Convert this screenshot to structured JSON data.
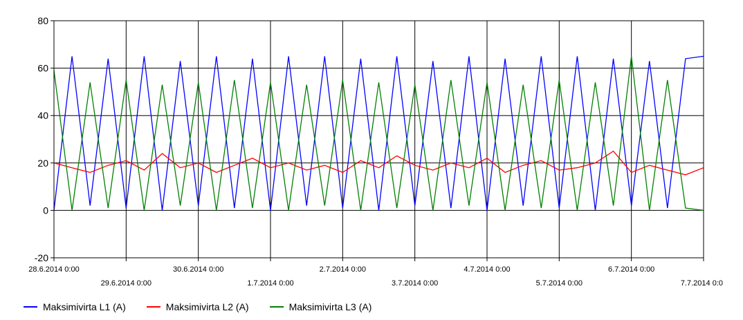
{
  "chart_data": {
    "type": "line",
    "title": "",
    "xlabel": "",
    "ylabel": "",
    "ylim": [
      -20,
      80
    ],
    "yticks": [
      -20,
      0,
      20,
      40,
      60,
      80
    ],
    "xlim": [
      "2014-06-28T00:00",
      "2014-07-07T00:00"
    ],
    "xticks_upper": [
      "28.6.2014 0:00",
      "30.6.2014 0:00",
      "2.7.2014 0:00",
      "4.7.2014 0:00",
      "6.7.2014 0:00"
    ],
    "xticks_lower": [
      "29.6.2014 0:00",
      "1.7.2014 0:00",
      "3.7.2014 0:00",
      "5.7.2014 0:00",
      "7.7.2014 0:0"
    ],
    "grid": true,
    "legend_position": "bottom-left",
    "series": [
      {
        "name": "Maksimivirta L1 (A)",
        "color": "#0000ff",
        "summary": "rapid switching between about 0 and 65",
        "x": [
          "2014-06-28T00:00",
          "2014-06-28T06:00",
          "2014-06-28T12:00",
          "2014-06-28T18:00",
          "2014-06-29T00:00",
          "2014-06-29T06:00",
          "2014-06-29T12:00",
          "2014-06-29T18:00",
          "2014-06-30T00:00",
          "2014-06-30T06:00",
          "2014-06-30T12:00",
          "2014-06-30T18:00",
          "2014-07-01T00:00",
          "2014-07-01T06:00",
          "2014-07-01T12:00",
          "2014-07-01T18:00",
          "2014-07-02T00:00",
          "2014-07-02T06:00",
          "2014-07-02T12:00",
          "2014-07-02T18:00",
          "2014-07-03T00:00",
          "2014-07-03T06:00",
          "2014-07-03T12:00",
          "2014-07-03T18:00",
          "2014-07-04T00:00",
          "2014-07-04T06:00",
          "2014-07-04T12:00",
          "2014-07-04T18:00",
          "2014-07-05T00:00",
          "2014-07-05T06:00",
          "2014-07-05T12:00",
          "2014-07-05T18:00",
          "2014-07-06T00:00",
          "2014-07-06T06:00",
          "2014-07-06T12:00",
          "2014-07-06T18:00",
          "2014-07-07T00:00"
        ],
        "values": [
          0,
          65,
          2,
          64,
          1,
          65,
          0,
          63,
          2,
          65,
          1,
          64,
          0,
          65,
          2,
          65,
          1,
          64,
          0,
          65,
          2,
          63,
          1,
          65,
          0,
          64,
          2,
          65,
          1,
          65,
          0,
          64,
          2,
          63,
          1,
          64,
          65
        ]
      },
      {
        "name": "Maksimivirta L2 (A)",
        "color": "#ff0000",
        "summary": "fluctuates between about 15 and 26",
        "x": [
          "2014-06-28T00:00",
          "2014-06-28T06:00",
          "2014-06-28T12:00",
          "2014-06-28T18:00",
          "2014-06-29T00:00",
          "2014-06-29T06:00",
          "2014-06-29T12:00",
          "2014-06-29T18:00",
          "2014-06-30T00:00",
          "2014-06-30T06:00",
          "2014-06-30T12:00",
          "2014-06-30T18:00",
          "2014-07-01T00:00",
          "2014-07-01T06:00",
          "2014-07-01T12:00",
          "2014-07-01T18:00",
          "2014-07-02T00:00",
          "2014-07-02T06:00",
          "2014-07-02T12:00",
          "2014-07-02T18:00",
          "2014-07-03T00:00",
          "2014-07-03T06:00",
          "2014-07-03T12:00",
          "2014-07-03T18:00",
          "2014-07-04T00:00",
          "2014-07-04T06:00",
          "2014-07-04T12:00",
          "2014-07-04T18:00",
          "2014-07-05T00:00",
          "2014-07-05T06:00",
          "2014-07-05T12:00",
          "2014-07-05T18:00",
          "2014-07-06T00:00",
          "2014-07-06T06:00",
          "2014-07-06T12:00",
          "2014-07-06T18:00",
          "2014-07-07T00:00"
        ],
        "values": [
          20,
          18,
          16,
          19,
          21,
          17,
          24,
          18,
          20,
          16,
          19,
          22,
          18,
          20,
          17,
          19,
          16,
          21,
          18,
          23,
          19,
          17,
          20,
          18,
          22,
          16,
          19,
          21,
          17,
          18,
          20,
          25,
          16,
          19,
          17,
          15,
          18
        ]
      },
      {
        "name": "Maksimivirta L3 (A)",
        "color": "#008000",
        "summary": "rapid switching between about 0 and 55, peaks near 60",
        "x": [
          "2014-06-28T00:00",
          "2014-06-28T06:00",
          "2014-06-28T12:00",
          "2014-06-28T18:00",
          "2014-06-29T00:00",
          "2014-06-29T06:00",
          "2014-06-29T12:00",
          "2014-06-29T18:00",
          "2014-06-30T00:00",
          "2014-06-30T06:00",
          "2014-06-30T12:00",
          "2014-06-30T18:00",
          "2014-07-01T00:00",
          "2014-07-01T06:00",
          "2014-07-01T12:00",
          "2014-07-01T18:00",
          "2014-07-02T00:00",
          "2014-07-02T06:00",
          "2014-07-02T12:00",
          "2014-07-02T18:00",
          "2014-07-03T00:00",
          "2014-07-03T06:00",
          "2014-07-03T12:00",
          "2014-07-03T18:00",
          "2014-07-04T00:00",
          "2014-07-04T06:00",
          "2014-07-04T12:00",
          "2014-07-04T18:00",
          "2014-07-05T00:00",
          "2014-07-05T06:00",
          "2014-07-05T12:00",
          "2014-07-05T18:00",
          "2014-07-06T00:00",
          "2014-07-06T06:00",
          "2014-07-06T12:00",
          "2014-07-06T18:00",
          "2014-07-07T00:00"
        ],
        "values": [
          59,
          0,
          54,
          1,
          55,
          0,
          53,
          2,
          54,
          0,
          55,
          1,
          54,
          0,
          53,
          2,
          55,
          0,
          54,
          1,
          53,
          0,
          55,
          2,
          54,
          0,
          53,
          1,
          55,
          0,
          54,
          2,
          65,
          0,
          55,
          1,
          0
        ]
      }
    ]
  }
}
